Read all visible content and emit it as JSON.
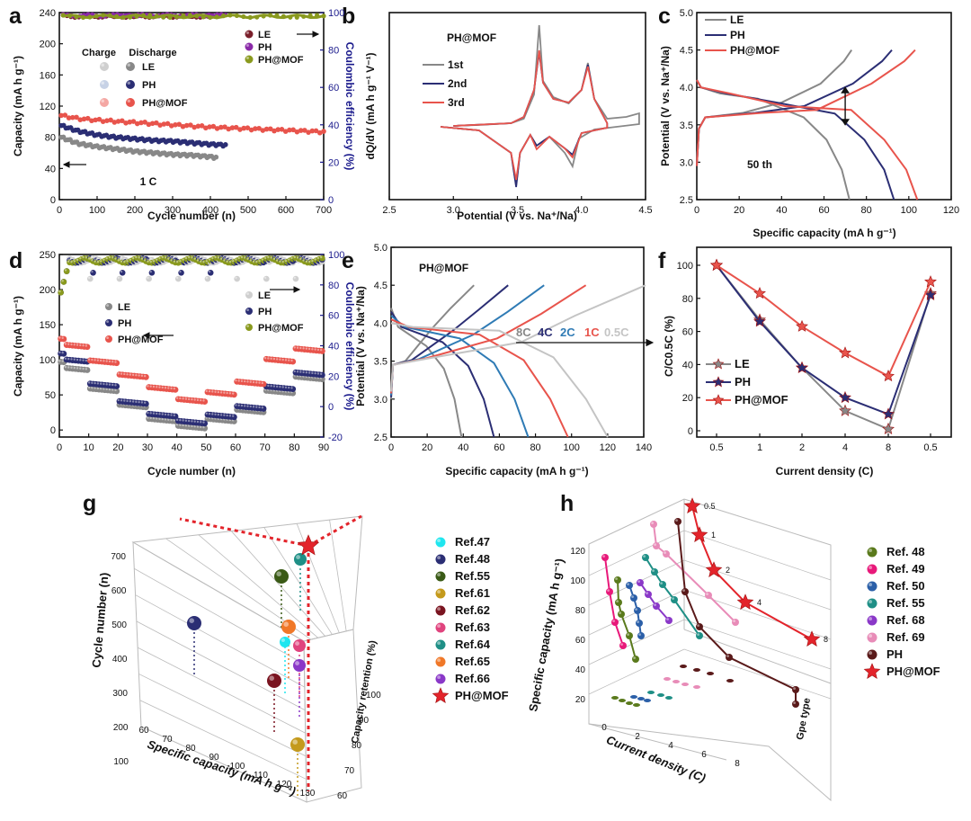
{
  "chart_data": [
    {
      "panel": "a",
      "type": "line",
      "xlabel": "Cycle number (n)",
      "ylabel": "Capacity (mA h g⁻¹)",
      "y2label": "Coulombic efficiency (%)",
      "xlim": [
        0,
        700
      ],
      "ylim": [
        0,
        240
      ],
      "y2lim": [
        0,
        100
      ],
      "xticks": [
        "0",
        "100",
        "200",
        "300",
        "400",
        "500",
        "600",
        "700"
      ],
      "yticks": [
        "0",
        "40",
        "80",
        "120",
        "160",
        "200",
        "240"
      ],
      "y2ticks": [
        "0",
        "20",
        "40",
        "60",
        "80",
        "100"
      ],
      "legend_header": [
        "Charge",
        "Discharge"
      ],
      "annotation": "1 C",
      "series": [
        {
          "name": "LE",
          "color": "#888888",
          "x": [
            5,
            50,
            100,
            150,
            200,
            250,
            300,
            350,
            400,
            415
          ],
          "y": [
            80,
            72,
            68,
            65,
            62,
            60,
            58,
            57,
            55,
            54
          ]
        },
        {
          "name": "PH",
          "color": "#2b2e74",
          "x": [
            5,
            50,
            100,
            150,
            200,
            250,
            300,
            350,
            400,
            440
          ],
          "y": [
            95,
            88,
            83,
            80,
            78,
            76,
            75,
            73,
            71,
            70
          ]
        },
        {
          "name": "PH@MOF",
          "color": "#e8544c",
          "x": [
            5,
            50,
            100,
            200,
            300,
            400,
            500,
            600,
            700
          ],
          "y": [
            108,
            104,
            102,
            99,
            96,
            93,
            91,
            89,
            87
          ]
        }
      ],
      "ce_series": [
        {
          "name": "LE",
          "color": "#7a1f2b",
          "x": [
            10,
            415
          ],
          "y": [
            98,
            99
          ]
        },
        {
          "name": "PH",
          "color": "#8a2aa8",
          "x": [
            10,
            440
          ],
          "y": [
            98.5,
            99.5
          ]
        },
        {
          "name": "PH@MOF",
          "color": "#8a9a1e",
          "x": [
            10,
            700
          ],
          "y": [
            98,
            99
          ]
        }
      ]
    },
    {
      "panel": "b",
      "type": "line",
      "title": "PH@MOF",
      "xlabel": "Potential (V vs. Na⁺/Na)",
      "ylabel": "dQ/dV (mA h g⁻¹ V⁻¹)",
      "xlim": [
        2.5,
        4.5
      ],
      "xticks": [
        "2.5",
        "3.0",
        "3.5",
        "4.0",
        "4.5"
      ],
      "series": [
        {
          "name": "1st",
          "color": "#888888"
        },
        {
          "name": "2nd",
          "color": "#2b2e74"
        },
        {
          "name": "3rd",
          "color": "#e8544c"
        }
      ]
    },
    {
      "panel": "c",
      "type": "line",
      "xlabel": "Specific capacity (mA h g⁻¹)",
      "ylabel": "Potential (V vs. Na⁺/Na)",
      "xlim": [
        0,
        120
      ],
      "ylim": [
        2.5,
        5.0
      ],
      "xticks": [
        "0",
        "20",
        "40",
        "60",
        "80",
        "100",
        "120"
      ],
      "yticks": [
        "2.5",
        "3.0",
        "3.5",
        "4.0",
        "4.5",
        "5.0"
      ],
      "annotation": "50 th",
      "series": [
        {
          "name": "LE",
          "color": "#888888",
          "charge_end": 73,
          "discharge_end": 72
        },
        {
          "name": "PH",
          "color": "#2b2e74",
          "charge_end": 92,
          "discharge_end": 93
        },
        {
          "name": "PH@MOF",
          "color": "#e8544c",
          "charge_end": 103,
          "discharge_end": 104
        }
      ]
    },
    {
      "panel": "d",
      "type": "scatter",
      "xlabel": "Cycle number (n)",
      "ylabel": "Capacity (mA h g⁻¹)",
      "y2label": "Coulombic efficiency (%)",
      "xlim": [
        0,
        90
      ],
      "ylim": [
        -10,
        250
      ],
      "y2lim": [
        -20,
        100
      ],
      "xticks": [
        "0",
        "10",
        "20",
        "30",
        "40",
        "50",
        "60",
        "70",
        "80",
        "90"
      ],
      "yticks": [
        "0",
        "50",
        "100",
        "150",
        "200",
        "250"
      ],
      "y2ticks": [
        "-20",
        "0",
        "20",
        "40",
        "60",
        "80",
        "100"
      ],
      "series": [
        {
          "name": "LE",
          "color": "#888888",
          "y": [
            85,
            55,
            32,
            12,
            2,
            12,
            25,
            52,
            72
          ]
        },
        {
          "name": "PH",
          "color": "#2b2e74",
          "y": [
            97,
            62,
            37,
            19,
            9,
            18,
            30,
            58,
            78
          ]
        },
        {
          "name": "PH@MOF",
          "color": "#e8544c",
          "y": [
            118,
            95,
            75,
            57,
            40,
            50,
            65,
            97,
            112
          ]
        }
      ]
    },
    {
      "panel": "e",
      "type": "line",
      "title": "PH@MOF",
      "xlabel": "Specific capacity (mA h g⁻¹)",
      "ylabel": "Potential (V vs. Na⁺/Na)",
      "xlim": [
        0,
        140
      ],
      "ylim": [
        2.5,
        5.0
      ],
      "xticks": [
        "0",
        "20",
        "40",
        "60",
        "80",
        "100",
        "120",
        "140"
      ],
      "yticks": [
        "2.5",
        "3.0",
        "3.5",
        "4.0",
        "4.5",
        "5.0"
      ],
      "series": [
        {
          "name": "8C",
          "color": "#888888",
          "end": 39
        },
        {
          "name": "4C",
          "color": "#2b2e74",
          "end": 57
        },
        {
          "name": "2C",
          "color": "#2f7bb5",
          "end": 76
        },
        {
          "name": "1C",
          "color": "#e8544c",
          "end": 98
        },
        {
          "name": "0.5C",
          "color": "#c4c4c4",
          "end": 120
        }
      ]
    },
    {
      "panel": "f",
      "type": "line",
      "xlabel": "Current density (C)",
      "ylabel": "C/C0.5C (%)",
      "categories": [
        "0.5",
        "1",
        "2",
        "4",
        "8",
        "0.5"
      ],
      "ylim": [
        0,
        100
      ],
      "yticks": [
        "0",
        "20",
        "40",
        "60",
        "80",
        "100"
      ],
      "series": [
        {
          "name": "LE",
          "color": "#888888",
          "values": [
            100,
            67,
            38,
            12,
            1,
            83
          ]
        },
        {
          "name": "PH",
          "color": "#2b2e74",
          "values": [
            100,
            66,
            38,
            20,
            10,
            82
          ]
        },
        {
          "name": "PH@MOF",
          "color": "#e8544c",
          "values": [
            100,
            83,
            63,
            47,
            33,
            90
          ]
        }
      ]
    },
    {
      "panel": "g",
      "type": "scatter",
      "xlabel": "Specific capacity (mA h g⁻¹)",
      "ylabel": "Cycle number (n)",
      "zlabel": "Capacity retention (%)",
      "xticks": [
        "60",
        "70",
        "80",
        "90",
        "100",
        "110",
        "120",
        "130"
      ],
      "yticks": [
        "100",
        "200",
        "300",
        "400",
        "500",
        "600",
        "700"
      ],
      "zticks": [
        "60",
        "70",
        "80",
        "90",
        "100"
      ],
      "series": [
        {
          "name": "Ref.47",
          "color": "#1fe6ef"
        },
        {
          "name": "Ref.48",
          "color": "#2b2e74"
        },
        {
          "name": "Ref.55",
          "color": "#3a5a16"
        },
        {
          "name": "Ref.61",
          "color": "#c49a1c"
        },
        {
          "name": "Ref.62",
          "color": "#7a1420"
        },
        {
          "name": "Ref.63",
          "color": "#e0447e"
        },
        {
          "name": "Ref.64",
          "color": "#1f8f86"
        },
        {
          "name": "Ref.65",
          "color": "#f07828"
        },
        {
          "name": "Ref.66",
          "color": "#8a38c8"
        },
        {
          "name": "PH@MOF",
          "color": "#e3242b"
        }
      ]
    },
    {
      "panel": "h",
      "type": "scatter",
      "xlabel": "Current density (C)",
      "ylabel": "Specific capacity (mA h g⁻¹)",
      "zlabel": "Gpe type",
      "xticks": [
        "0",
        "2",
        "4",
        "6",
        "8"
      ],
      "yticks": [
        "20",
        "40",
        "60",
        "80",
        "100",
        "120"
      ],
      "star_labels": [
        "0.5",
        "1",
        "2",
        "4",
        "8"
      ],
      "series": [
        {
          "name": "Ref. 48",
          "color": "#5a7a1c"
        },
        {
          "name": "Ref. 49",
          "color": "#e8197a"
        },
        {
          "name": "Ref. 50",
          "color": "#2b5fa8"
        },
        {
          "name": "Ref. 55",
          "color": "#1f8f86"
        },
        {
          "name": "Ref. 68",
          "color": "#8a38c8"
        },
        {
          "name": "Ref. 69",
          "color": "#e88cb8"
        },
        {
          "name": "PH",
          "color": "#5a1a1a"
        },
        {
          "name": "PH@MOF",
          "color": "#e3242b"
        }
      ]
    }
  ],
  "panel_labels": [
    "a",
    "b",
    "c",
    "d",
    "e",
    "f",
    "g",
    "h"
  ],
  "legend_a": [
    "LE",
    "PH",
    "PH@MOF"
  ],
  "legend_a_groups": [
    "LE",
    "PH",
    "PH@MOF"
  ],
  "legend_d_ce": [
    "LE",
    "PH",
    "PH@MOF"
  ],
  "legend_d_cap": [
    "LE",
    "PH",
    "PH@MOF"
  ],
  "legend_e_rates": [
    "8C",
    "4C",
    "2C",
    "1C",
    "0.5C"
  ]
}
